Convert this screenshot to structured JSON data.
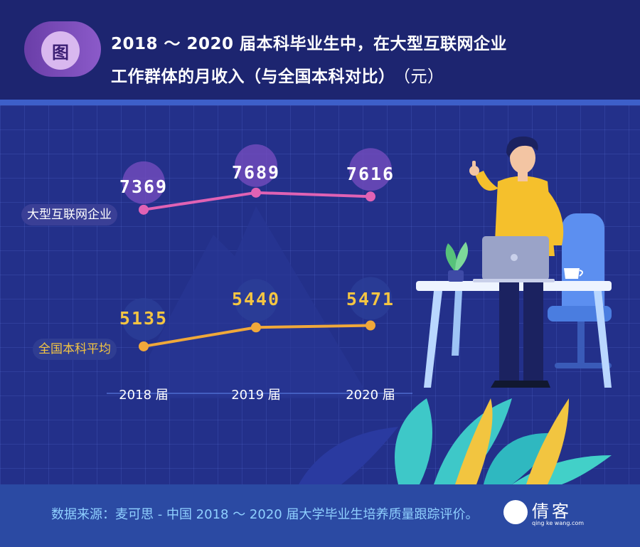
{
  "header": {
    "badge": "图",
    "title_line1": "2018 ～ 2020 届本科毕业生中，在大型互联网企业",
    "title_line2": "工作群体的月收入（与全国本科对比）",
    "unit": "（元）"
  },
  "chart_data": {
    "type": "line",
    "categories": [
      "2018 届",
      "2019 届",
      "2020 届"
    ],
    "series": [
      {
        "name": "大型互联网企业",
        "values": [
          7369,
          7689,
          7616
        ],
        "color": "#e062b4"
      },
      {
        "name": "全国本科平均",
        "values": [
          5135,
          5440,
          5471
        ],
        "color": "#f0a83a"
      }
    ],
    "grid": true
  },
  "footer": {
    "source": "数据来源：麦可思 - 中国 2018 ～ 2020 届大学毕业生培养质量跟踪评价。",
    "watermark": "倩客",
    "watermark_sub": "qing ke wang.com"
  },
  "colors": {
    "background": "#23308a",
    "header_bg": "#1d2570",
    "footer_bg": "#2b4aa3",
    "internet_line": "#e062b4",
    "national_line": "#f0a83a",
    "accent_purple": "#7a4ec0"
  },
  "icons": [
    "person-illustration",
    "laptop-icon",
    "plant-icon",
    "cup-icon",
    "leaf-decoration"
  ]
}
